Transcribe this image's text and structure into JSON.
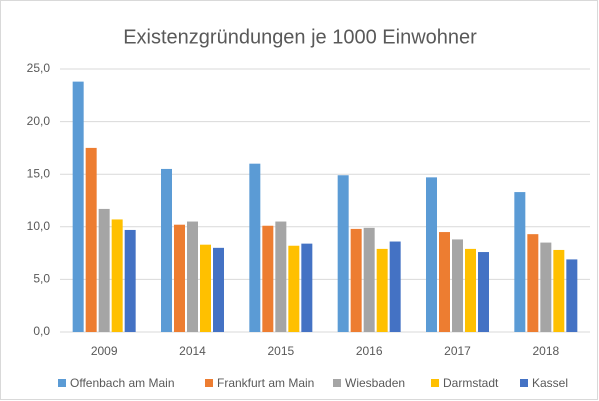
{
  "chart_data": {
    "type": "bar",
    "title": "Existenzgründungen  je 1000 Einwohner",
    "categories": [
      "2009",
      "2014",
      "2015",
      "2016",
      "2017",
      "2018"
    ],
    "series": [
      {
        "name": "Offenbach am Main",
        "color": "#5b9bd5",
        "values": [
          23.8,
          15.5,
          16.0,
          14.9,
          14.7,
          13.3
        ]
      },
      {
        "name": "Frankfurt am Main",
        "color": "#ed7d31",
        "values": [
          17.5,
          10.2,
          10.1,
          9.8,
          9.5,
          9.3
        ]
      },
      {
        "name": "Wiesbaden",
        "color": "#a5a5a5",
        "values": [
          11.7,
          10.5,
          10.5,
          9.9,
          8.8,
          8.5
        ]
      },
      {
        "name": "Darmstadt",
        "color": "#ffc000",
        "values": [
          10.7,
          8.3,
          8.2,
          7.9,
          7.9,
          7.8
        ]
      },
      {
        "name": "Kassel",
        "color": "#4472c4",
        "values": [
          9.7,
          8.0,
          8.4,
          8.6,
          7.6,
          6.9
        ]
      }
    ],
    "ylim": [
      0,
      25
    ],
    "yticks": [
      {
        "value": 0,
        "label": "0,0"
      },
      {
        "value": 5,
        "label": "5,0"
      },
      {
        "value": 10,
        "label": "10,0"
      },
      {
        "value": 15,
        "label": "15,0"
      },
      {
        "value": 20,
        "label": "20,0"
      },
      {
        "value": 25,
        "label": "25,0"
      }
    ],
    "grid": true,
    "legend": "bottom"
  }
}
